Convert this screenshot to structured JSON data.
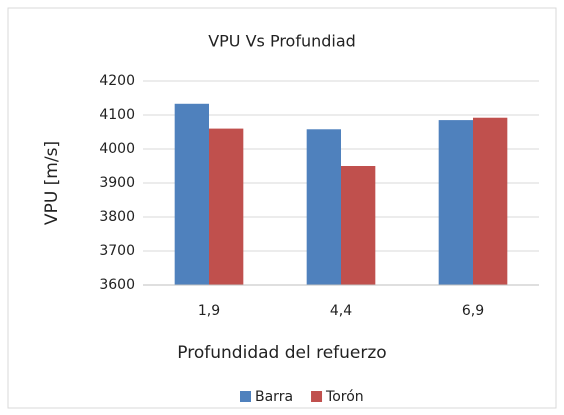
{
  "chart_data": {
    "type": "bar",
    "title": "VPU Vs Profundiad",
    "x_label": "Profundidad del refuerzo",
    "y_label": "VPU [m/s]",
    "categories": [
      "1,9",
      "4,4",
      "6,9"
    ],
    "series": [
      {
        "name": "Barra",
        "color": "#4f81bd",
        "values": [
          4133,
          4058,
          4085
        ]
      },
      {
        "name": "Torón",
        "color": "#c0504d",
        "values": [
          4060,
          3950,
          4092
        ]
      }
    ],
    "ylim": [
      3600,
      4200
    ],
    "yticks": [
      3600,
      3700,
      3800,
      3900,
      4000,
      4100,
      4200
    ],
    "grid": true,
    "legend": "bottom"
  }
}
